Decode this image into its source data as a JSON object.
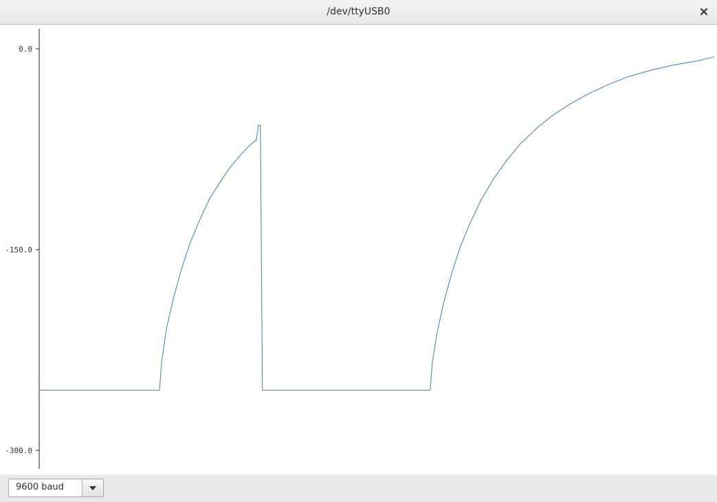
{
  "window": {
    "title": "/dev/ttyUSB0",
    "close_icon": "close-icon"
  },
  "plot": {
    "y_ticks": [
      {
        "value": 0,
        "label": "0.0"
      },
      {
        "value": -150,
        "label": "-150.0"
      },
      {
        "value": -300,
        "label": "-300.0"
      }
    ],
    "y_range": [
      -300,
      0
    ],
    "line_color": "#3a7bbf"
  },
  "chart_data": {
    "type": "line",
    "title": "",
    "xlabel": "",
    "ylabel": "",
    "ylim": [
      -300,
      0
    ],
    "series": [
      {
        "values": [
          [
            0,
            -255
          ],
          [
            180,
            -255
          ],
          [
            183,
            -235
          ],
          [
            190,
            -210
          ],
          [
            200,
            -188
          ],
          [
            212,
            -166
          ],
          [
            225,
            -146
          ],
          [
            240,
            -128
          ],
          [
            255,
            -112
          ],
          [
            270,
            -100
          ],
          [
            285,
            -89
          ],
          [
            300,
            -80
          ],
          [
            315,
            -72
          ],
          [
            325,
            -68
          ],
          [
            328,
            -57
          ],
          [
            331,
            -57
          ],
          [
            334,
            -255
          ],
          [
            585,
            -255
          ],
          [
            588,
            -235
          ],
          [
            595,
            -213
          ],
          [
            605,
            -190
          ],
          [
            617,
            -168
          ],
          [
            630,
            -148
          ],
          [
            645,
            -130
          ],
          [
            660,
            -114
          ],
          [
            680,
            -97
          ],
          [
            700,
            -83
          ],
          [
            720,
            -71
          ],
          [
            745,
            -59
          ],
          [
            770,
            -49
          ],
          [
            795,
            -41
          ],
          [
            820,
            -34
          ],
          [
            850,
            -27
          ],
          [
            880,
            -21
          ],
          [
            915,
            -16
          ],
          [
            950,
            -12
          ],
          [
            985,
            -9
          ],
          [
            1010,
            -6
          ]
        ]
      }
    ]
  },
  "bottom": {
    "baud_label": "9600 baud"
  }
}
